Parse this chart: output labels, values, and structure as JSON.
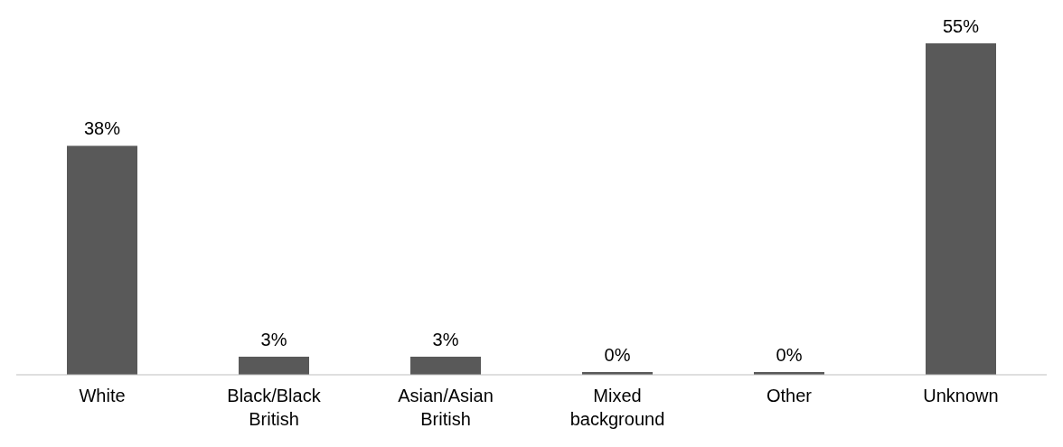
{
  "chart_data": {
    "type": "bar",
    "categories": [
      "White",
      "Black/Black British",
      "Asian/Asian British",
      "Mixed background",
      "Other",
      "Unknown"
    ],
    "values": [
      38,
      3,
      3,
      0,
      0,
      55
    ],
    "value_labels": [
      "38%",
      "3%",
      "3%",
      "0%",
      "0%",
      "55%"
    ],
    "color": "#595959"
  }
}
